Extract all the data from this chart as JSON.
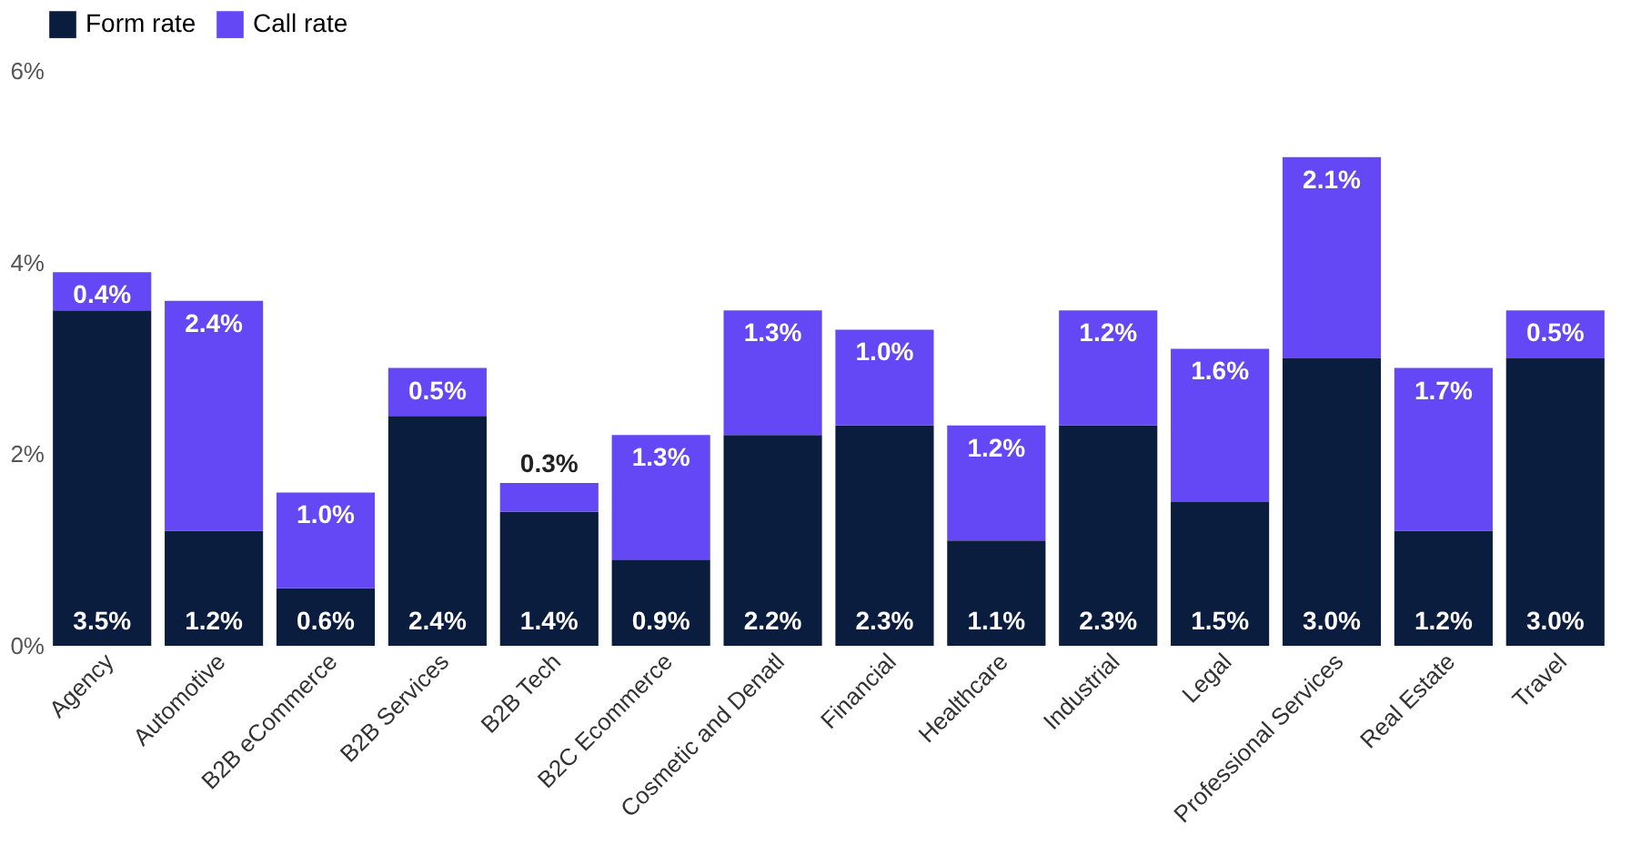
{
  "chart_data": {
    "type": "bar",
    "stacked": true,
    "categories": [
      "Agency",
      "Automotive",
      "B2B eCommerce",
      "B2B Services",
      "B2B Tech",
      "B2C Ecommerce",
      "Cosmetic and Denatl",
      "Financial",
      "Healthcare",
      "Industrial",
      "Legal",
      "Professional Services",
      "Real Estate",
      "Travel"
    ],
    "series": [
      {
        "name": "Form rate",
        "color": "#0b1d3f",
        "values": [
          3.5,
          1.2,
          0.6,
          2.4,
          1.4,
          0.9,
          2.2,
          2.3,
          1.1,
          2.3,
          1.5,
          3.0,
          1.2,
          3.0
        ],
        "value_labels": [
          "3.5%",
          "1.2%",
          "0.6%",
          "2.4%",
          "1.4%",
          "0.9%",
          "2.2%",
          "2.3%",
          "1.1%",
          "2.3%",
          "1.5%",
          "3.0%",
          "1.2%",
          "3.0%"
        ]
      },
      {
        "name": "Call rate",
        "color": "#6548f5",
        "values": [
          0.4,
          2.4,
          1.0,
          0.5,
          0.3,
          1.3,
          1.3,
          1.0,
          1.2,
          1.2,
          1.6,
          2.1,
          1.7,
          0.5
        ],
        "value_labels": [
          "0.4%",
          "2.4%",
          "1.0%",
          "0.5%",
          "0.3%",
          "1.3%",
          "1.3%",
          "1.0%",
          "1.2%",
          "1.2%",
          "1.6%",
          "2.1%",
          "1.7%",
          "0.5%"
        ]
      }
    ],
    "ylim": [
      0,
      6
    ],
    "yticks": [
      {
        "value": 0,
        "label": "0%"
      },
      {
        "value": 2,
        "label": "2%"
      },
      {
        "value": 4,
        "label": "4%"
      },
      {
        "value": 6,
        "label": "6%"
      }
    ],
    "grid": false,
    "legend": "top"
  }
}
